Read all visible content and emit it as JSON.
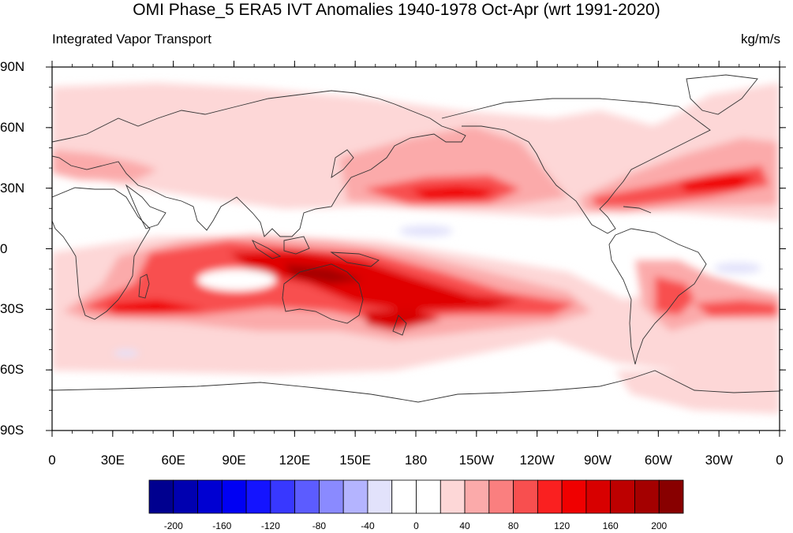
{
  "title": "OMI Phase_5 ERA5 IVT Anomalies 1940-1978 Oct-Apr (wrt 1991-2020)",
  "subtitle_left": "Integrated Vapor Transport",
  "subtitle_right": "kg/m/s",
  "map": {
    "projection": "cylindrical equidistant",
    "lon_range": [
      0,
      360
    ],
    "lat_range": [
      -90,
      90
    ],
    "lat_ticks": [
      {
        "label": "90N"
      },
      {
        "label": "60N"
      },
      {
        "label": "30N"
      },
      {
        "label": "0"
      },
      {
        "label": "30S"
      },
      {
        "label": "60S"
      },
      {
        "label": "90S"
      }
    ],
    "lon_ticks": [
      {
        "label": "0"
      },
      {
        "label": "30E"
      },
      {
        "label": "60E"
      },
      {
        "label": "90E"
      },
      {
        "label": "120E"
      },
      {
        "label": "150E"
      },
      {
        "label": "180"
      },
      {
        "label": "150W"
      },
      {
        "label": "120W"
      },
      {
        "label": "90W"
      },
      {
        "label": "60W"
      },
      {
        "label": "30W"
      },
      {
        "label": "0"
      }
    ]
  },
  "colorbar": {
    "colors": [
      "#00008f",
      "#0000b0",
      "#0000d2",
      "#0000f3",
      "#1414ff",
      "#3838ff",
      "#5c5cff",
      "#8a8aff",
      "#b4b4ff",
      "#e2e2fb",
      "#ffffff",
      "#ffffff",
      "#fdd7d7",
      "#fbaaaa",
      "#fa7f7f",
      "#f84f4f",
      "#fa2020",
      "#f00000",
      "#d80000",
      "#bd0000",
      "#a40000",
      "#880000"
    ],
    "tick_labels": [
      "-200",
      "-160",
      "-120",
      "-80",
      "-40",
      "0",
      "40",
      "80",
      "120",
      "160",
      "200"
    ]
  }
}
